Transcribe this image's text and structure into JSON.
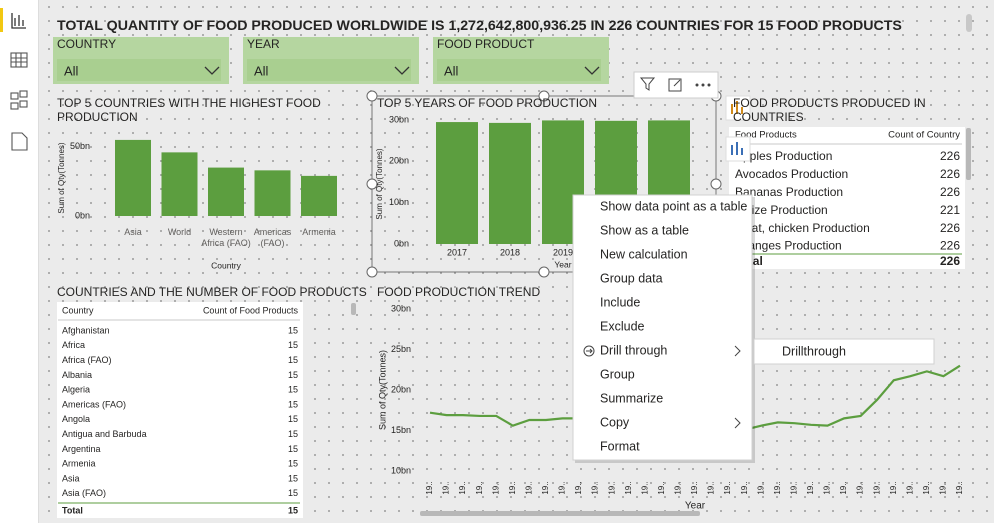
{
  "header": {
    "title": "TOTAL QUANTITY OF FOOD PRODUCED WORLDWIDE IS 1,272,642,800,936.25 IN 226 COUNTRIES FOR 15 FOOD PRODUCTS"
  },
  "slicers": [
    {
      "label": "COUNTRY",
      "value": "All"
    },
    {
      "label": "YEAR",
      "value": "All"
    },
    {
      "label": "FOOD PRODUCT",
      "value": "All"
    }
  ],
  "top_countries_chart": {
    "type": "bar",
    "title": "TOP 5 COUNTRIES WITH THE HIGHEST FOOD PRODUCTION",
    "y_axis_label": "Sum of Qty(Tonnes)",
    "x_axis_label": "Country",
    "categories": [
      "Asia",
      "World",
      "Western Africa (FAO)",
      "Americas (FAO)",
      "Armenia"
    ],
    "values": [
      55,
      46,
      35,
      33,
      29
    ],
    "color": "#5c9e3f",
    "ylim": [
      0,
      60
    ],
    "yticks": [
      {
        "value": 0,
        "label": "0bn"
      },
      {
        "value": 50,
        "label": "50bn"
      }
    ]
  },
  "top_years_chart": {
    "type": "bar",
    "title": "TOP 5 YEARS OF FOOD PRODUCTION",
    "y_axis_label": "Sum of Qty(Tonnes)",
    "x_axis_label": "Year",
    "categories": [
      "2017",
      "2018",
      "2019",
      null,
      null
    ],
    "values": [
      29.5,
      29.3,
      29.9,
      29.8,
      29.9
    ],
    "color": "#5c9e3f",
    "ylim": [
      0,
      30
    ],
    "yticks": [
      {
        "value": 0,
        "label": "0bn"
      },
      {
        "value": 10,
        "label": "10bn"
      },
      {
        "value": 20,
        "label": "20bn"
      },
      {
        "value": 30,
        "label": "30bn"
      }
    ]
  },
  "food_products_table": {
    "title": "FOOD PRODUCTS PRODUCED IN COUNTRIES",
    "columns": [
      "Food Products",
      "Count of Country"
    ],
    "rows": [
      [
        "Apples Production",
        226
      ],
      [
        "Avocados Production",
        226
      ],
      [
        "Bananas Production",
        226
      ],
      [
        "Maize Production",
        221
      ],
      [
        "Meat, chicken Production",
        226
      ],
      [
        "Oranges Production",
        226
      ]
    ],
    "total": [
      "Total",
      226
    ]
  },
  "countries_table": {
    "title": "COUNTRIES AND THE NUMBER OF FOOD PRODUCTS",
    "columns": [
      "Country",
      "Count of Food Products"
    ],
    "rows": [
      [
        "Afghanistan",
        15
      ],
      [
        "Africa",
        15
      ],
      [
        "Africa (FAO)",
        15
      ],
      [
        "Albania",
        15
      ],
      [
        "Algeria",
        15
      ],
      [
        "Americas (FAO)",
        15
      ],
      [
        "Angola",
        15
      ],
      [
        "Antigua and Barbuda",
        15
      ],
      [
        "Argentina",
        15
      ],
      [
        "Armenia",
        15
      ],
      [
        "Asia",
        15
      ],
      [
        "Asia (FAO)",
        15
      ]
    ],
    "total": [
      "Total",
      15
    ]
  },
  "trend_chart": {
    "type": "line",
    "title": "FOOD PRODUCTION TREND",
    "y_axis_label": "Sum of Qty(Tonnes)",
    "x_axis_label": "Year",
    "categories": [
      "19..",
      "19..",
      "19..",
      "19..",
      "19..",
      "19..",
      "19..",
      "19..",
      "19..",
      "19..",
      "19..",
      "19..",
      "19..",
      "19..",
      "19..",
      "19..",
      "19..",
      "19..",
      "19..",
      "19..",
      "19..",
      "19..",
      "19..",
      "19..",
      "19..",
      "19..",
      "19..",
      "19..",
      "19..",
      "19..",
      "19..",
      "19..",
      "19.."
    ],
    "values": [
      17.2,
      16.9,
      16.9,
      16.8,
      16.8,
      15.6,
      16.3,
      16.3,
      16.5,
      16.5,
      16.7,
      16.8,
      17.0,
      17.3,
      17.4,
      17.5,
      17.4,
      17.2,
      16.0,
      15.1,
      15.6,
      16.0,
      15.9,
      15.7,
      15.6,
      16.5,
      16.8,
      18.8,
      21.2,
      21.7,
      22.3,
      21.7,
      23.0
    ],
    "color": "#5c9e3f",
    "ylim": [
      10,
      30
    ],
    "yticks": [
      {
        "value": 10,
        "label": "10bn"
      },
      {
        "value": 15,
        "label": "15bn"
      },
      {
        "value": 20,
        "label": "20bn"
      },
      {
        "value": 25,
        "label": "25bn"
      },
      {
        "value": 30,
        "label": "30bn"
      }
    ]
  },
  "context_menu": {
    "items": [
      {
        "label": "Show data point as a table"
      },
      {
        "label": "Show as a table"
      },
      {
        "label": "New calculation"
      },
      {
        "label": "Group data"
      },
      {
        "label": "Include"
      },
      {
        "label": "Exclude"
      },
      {
        "label": "Drill through",
        "submenu": true
      },
      {
        "label": "Group",
        "disabled": true
      },
      {
        "label": "Summarize"
      },
      {
        "label": "Copy",
        "submenu": true
      },
      {
        "label": "Format"
      }
    ],
    "submenu_items": [
      "Drillthrough"
    ]
  }
}
